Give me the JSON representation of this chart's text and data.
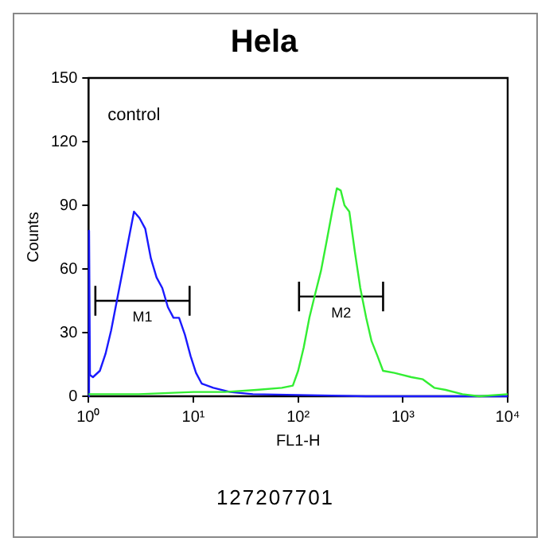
{
  "chart_data": {
    "type": "line",
    "title": "Hela",
    "xlabel": "FL1-H",
    "ylabel": "Counts",
    "annotations": [
      "control",
      "127207701"
    ],
    "log": "x",
    "grid": false,
    "legend": false,
    "marker": "none",
    "line_style": "solid",
    "xlim": [
      1,
      10000
    ],
    "xticks": [
      {
        "value": 1,
        "label": "10⁰"
      },
      {
        "value": 10,
        "label": "10¹"
      },
      {
        "value": 100,
        "label": "10²"
      },
      {
        "value": 1000,
        "label": "10³"
      },
      {
        "value": 10000,
        "label": "10⁴"
      }
    ],
    "ylim": [
      0,
      150
    ],
    "yticks": [
      0,
      30,
      60,
      90,
      120,
      150
    ],
    "series": [
      {
        "name": "M1",
        "color": "#000000",
        "x": [
          1.16,
          9.2
        ],
        "values": [
          45,
          45
        ],
        "errors": [
          7,
          7
        ]
      },
      {
        "name": "M2",
        "color": "#000000",
        "x": [
          102,
          647
        ],
        "values": [
          47,
          47
        ],
        "errors": [
          7,
          7
        ]
      },
      {
        "color": "#1a1aff",
        "x": [
          1,
          1.01,
          1.03,
          1.1,
          1.28,
          1.45,
          1.64,
          1.86,
          2.11,
          2.39,
          2.71,
          3.06,
          3.47,
          3.93,
          4.45,
          5.05,
          5.71,
          6.46,
          7.3,
          8.3,
          9.4,
          10.6,
          12,
          15.5,
          22.4,
          37,
          127,
          446,
          1550,
          10000
        ],
        "values": [
          0,
          78,
          10,
          9,
          12,
          20,
          31,
          45,
          59,
          73,
          87,
          84,
          79,
          65,
          56,
          51,
          42,
          37,
          37,
          29,
          19,
          11,
          6,
          4,
          2,
          1,
          0.5,
          0,
          0,
          0
        ]
      },
      {
        "color": "#33ee33",
        "x": [
          1,
          3,
          10,
          20,
          40,
          70,
          89,
          100,
          113,
          128,
          145,
          165,
          187,
          211,
          234,
          255,
          277,
          308,
          348,
          392,
          446,
          502,
          572,
          646,
          830,
          1205,
          1550,
          1990,
          2560,
          3700,
          5350,
          10000
        ],
        "values": [
          1,
          1,
          2,
          2,
          3,
          4,
          5,
          12,
          23,
          37,
          48,
          59,
          73,
          87,
          98,
          97,
          90,
          87,
          68,
          51,
          37,
          26,
          19,
          12,
          11,
          9,
          8,
          4,
          3,
          1,
          0,
          1
        ]
      }
    ]
  }
}
